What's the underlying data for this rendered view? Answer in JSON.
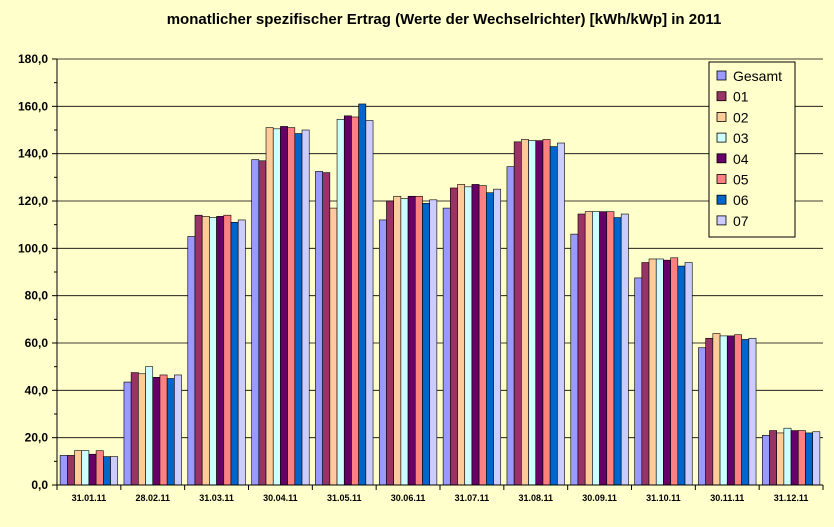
{
  "chart_data": {
    "type": "bar",
    "title": "monatlicher spezifischer Ertrag (Werte der Wechselrichter) [kWh/kWp] in 2011",
    "xlabel": "",
    "ylabel": "",
    "ylim": [
      0,
      180
    ],
    "yticks": [
      "0,0",
      "20,0",
      "40,0",
      "60,0",
      "80,0",
      "100,0",
      "120,0",
      "140,0",
      "160,0",
      "180,0"
    ],
    "categories": [
      "31.01.11",
      "28.02.11",
      "31.03.11",
      "30.04.11",
      "31.05.11",
      "30.06.11",
      "31.07.11",
      "31.08.11",
      "30.09.11",
      "31.10.11",
      "30.11.11",
      "31.12.11"
    ],
    "grid": true,
    "legend_position": "top-right",
    "series": [
      {
        "name": "Gesamt",
        "color": "#9999ff",
        "values": [
          12.5,
          43.5,
          105,
          137.5,
          132.5,
          112,
          117,
          134.5,
          106,
          87.5,
          58,
          21
        ]
      },
      {
        "name": "01",
        "color": "#993366",
        "values": [
          12.5,
          47.5,
          114,
          137,
          132,
          120,
          125.5,
          145,
          114.5,
          94,
          62,
          23
        ]
      },
      {
        "name": "02",
        "color": "#ffcc99",
        "values": [
          14.5,
          47,
          113.5,
          151,
          117,
          122,
          127,
          146,
          115.5,
          95.5,
          64,
          22
        ]
      },
      {
        "name": "03",
        "color": "#ccffff",
        "values": [
          14.5,
          50,
          113,
          150.5,
          154.5,
          121,
          126,
          145.5,
          115.5,
          95.5,
          63,
          24
        ]
      },
      {
        "name": "04",
        "color": "#660066",
        "values": [
          13,
          45.5,
          113.5,
          151.5,
          156,
          122,
          127,
          145.5,
          115.5,
          95,
          63,
          23
        ]
      },
      {
        "name": "05",
        "color": "#ff8080",
        "values": [
          14.5,
          46.5,
          114,
          151,
          155.5,
          122,
          126.5,
          146,
          115.5,
          96,
          63.5,
          23
        ]
      },
      {
        "name": "06",
        "color": "#0066cc",
        "values": [
          12,
          45,
          111,
          148.5,
          161,
          119,
          123.5,
          143,
          113,
          92.5,
          61.5,
          22
        ]
      },
      {
        "name": "07",
        "color": "#ccccff",
        "values": [
          12,
          46.5,
          112,
          150,
          154,
          120.5,
          125,
          144.5,
          114.5,
          94,
          62,
          22.5
        ]
      }
    ]
  }
}
